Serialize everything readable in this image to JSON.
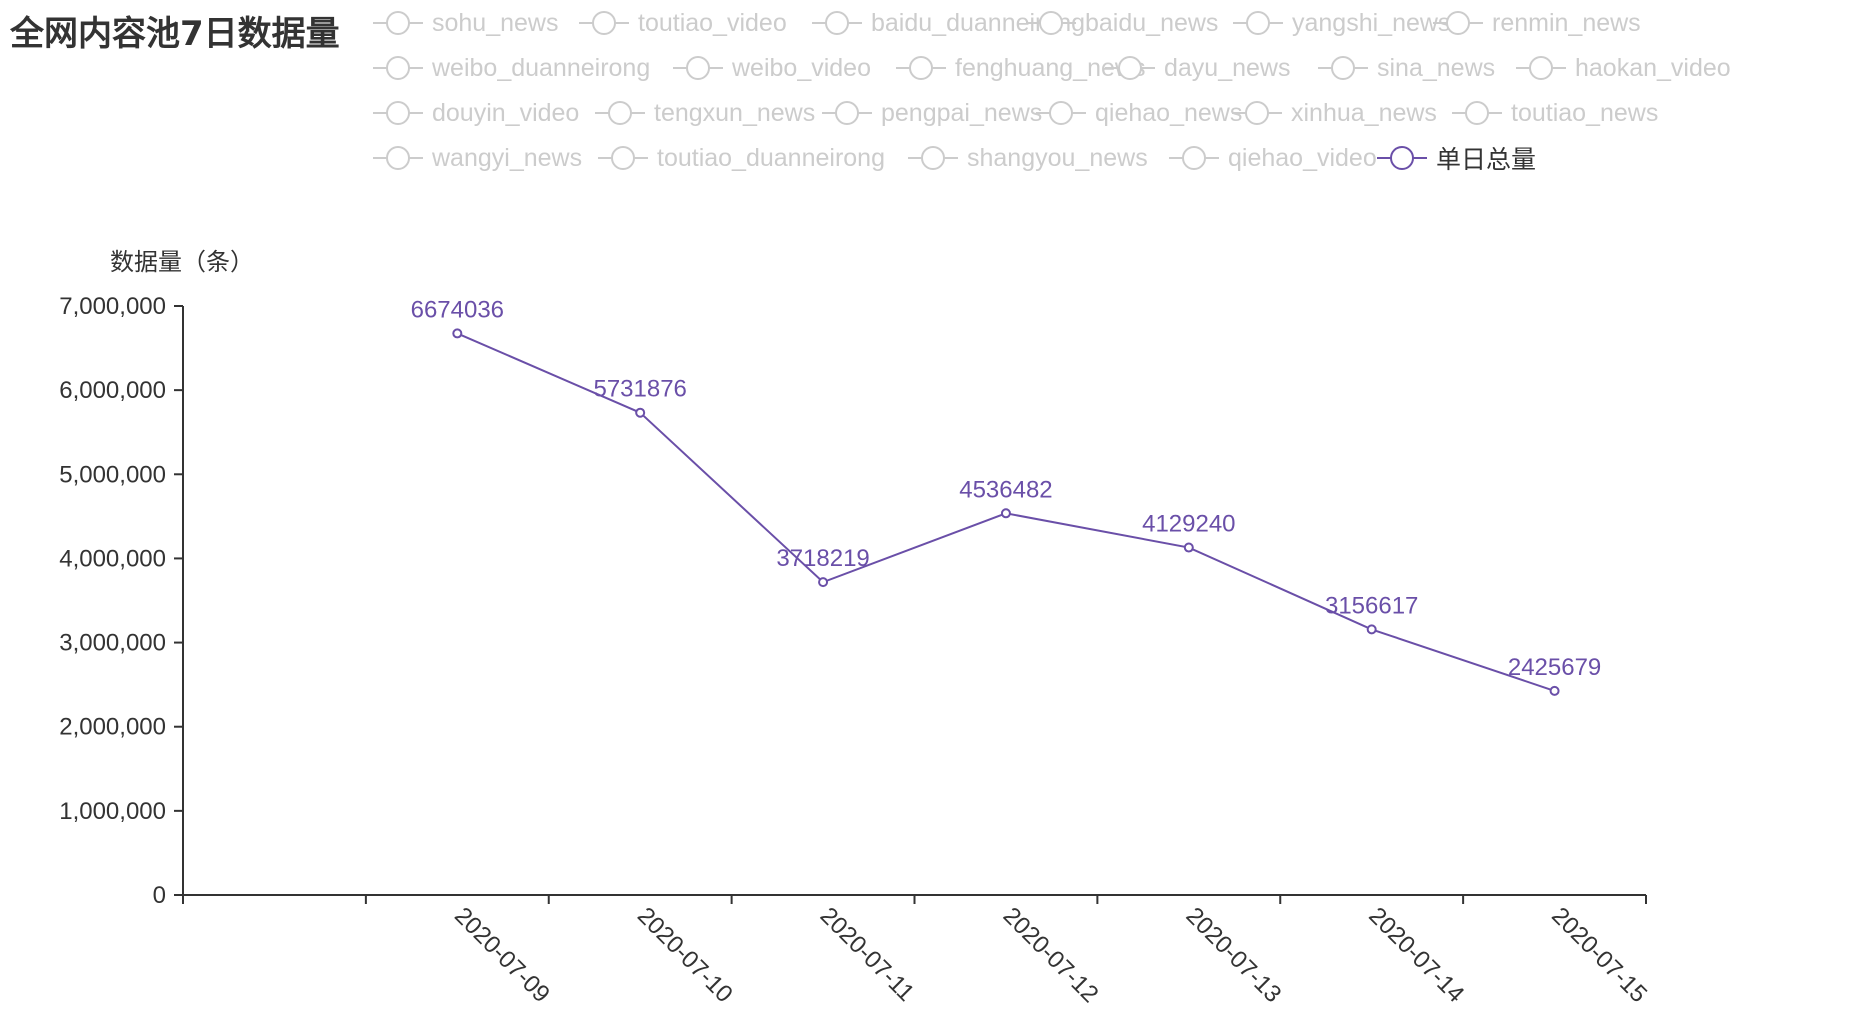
{
  "chart_data": {
    "type": "line",
    "title": "全网内容池7日数据量",
    "ylabel": "数据量（条）",
    "xlabel": "",
    "categories": [
      "",
      "2020-07-09",
      "2020-07-10",
      "2020-07-11",
      "2020-07-12",
      "2020-07-13",
      "2020-07-14",
      "2020-07-15"
    ],
    "yticks": [
      "0",
      "1,000,000",
      "2,000,000",
      "3,000,000",
      "4,000,000",
      "5,000,000",
      "6,000,000",
      "7,000,000"
    ],
    "ylim": [
      0,
      7000000
    ],
    "grid": false,
    "legend_position": "top",
    "series": [
      {
        "name": "单日总量",
        "color": "#6a4fa8",
        "values": [
          null,
          6674036,
          5731876,
          3718219,
          4536482,
          4129240,
          3156617,
          2425679
        ],
        "labels": [
          "",
          "6674036",
          "5731876",
          "3718219",
          "4536482",
          "4129240",
          "3156617",
          "2425679"
        ]
      }
    ],
    "legend": [
      {
        "name": "sohu_news",
        "active": false
      },
      {
        "name": "toutiao_video",
        "active": false
      },
      {
        "name": "baidu_duanneirong",
        "active": false
      },
      {
        "name": "baidu_news",
        "active": false
      },
      {
        "name": "yangshi_news",
        "active": false
      },
      {
        "name": "renmin_news",
        "active": false
      },
      {
        "name": "weibo_duanneirong",
        "active": false
      },
      {
        "name": "weibo_video",
        "active": false
      },
      {
        "name": "fenghuang_news",
        "active": false
      },
      {
        "name": "dayu_news",
        "active": false
      },
      {
        "name": "sina_news",
        "active": false
      },
      {
        "name": "haokan_video",
        "active": false
      },
      {
        "name": "douyin_video",
        "active": false
      },
      {
        "name": "tengxun_news",
        "active": false
      },
      {
        "name": "pengpai_news",
        "active": false
      },
      {
        "name": "qiehao_news",
        "active": false
      },
      {
        "name": "xinhua_news",
        "active": false
      },
      {
        "name": "toutiao_news",
        "active": false
      },
      {
        "name": "wangyi_news",
        "active": false
      },
      {
        "name": "toutiao_duanneirong",
        "active": false
      },
      {
        "name": "shangyou_news",
        "active": false
      },
      {
        "name": "qiehao_video",
        "active": false
      },
      {
        "name": "单日总量",
        "active": true
      }
    ],
    "colors": {
      "inactive": "#cccccc",
      "axis": "#333333",
      "series": "#6a4fa8",
      "text": "#333333"
    }
  }
}
